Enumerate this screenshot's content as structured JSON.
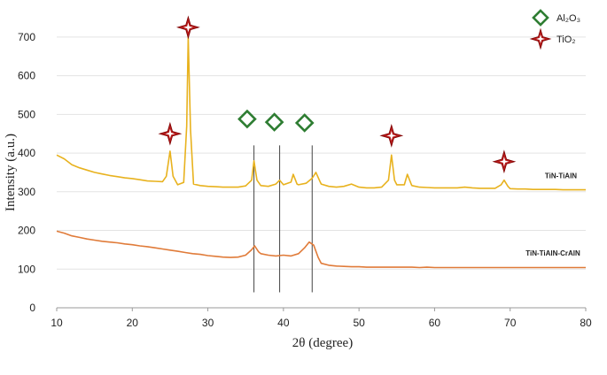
{
  "chart_data": {
    "type": "line",
    "title": "",
    "xlabel": "2θ (degree)",
    "ylabel": "Intensity (a.u.)",
    "xlim": [
      10,
      80
    ],
    "ylim": [
      0,
      750
    ],
    "x_ticks": [
      "10",
      "20",
      "30",
      "40",
      "50",
      "60",
      "70",
      "80"
    ],
    "y_ticks": [
      "0",
      "100",
      "200",
      "300",
      "400",
      "500",
      "600",
      "700"
    ],
    "grid": "horizontal",
    "legend": [
      {
        "name": "Al₂O₃",
        "marker": "diamond",
        "color": "#2e7d32"
      },
      {
        "name": "TiO₂",
        "marker": "star",
        "color": "#b71c1c"
      }
    ],
    "series": [
      {
        "name": "TiN-TiAlN",
        "color": "#e8b21e",
        "points": [
          [
            10,
            395
          ],
          [
            11,
            385
          ],
          [
            12,
            370
          ],
          [
            13,
            362
          ],
          [
            14,
            356
          ],
          [
            15,
            350
          ],
          [
            16,
            346
          ],
          [
            17,
            342
          ],
          [
            18,
            339
          ],
          [
            19,
            336
          ],
          [
            20,
            334
          ],
          [
            21,
            331
          ],
          [
            22,
            328
          ],
          [
            23,
            327
          ],
          [
            24,
            326
          ],
          [
            24.5,
            340
          ],
          [
            25.0,
            405
          ],
          [
            25.4,
            340
          ],
          [
            26,
            318
          ],
          [
            26.8,
            324
          ],
          [
            27.2,
            470
          ],
          [
            27.4,
            700
          ],
          [
            27.7,
            460
          ],
          [
            28.1,
            320
          ],
          [
            29,
            316
          ],
          [
            30,
            314
          ],
          [
            31,
            313
          ],
          [
            32,
            312
          ],
          [
            33,
            312
          ],
          [
            34,
            312
          ],
          [
            35,
            315
          ],
          [
            35.8,
            330
          ],
          [
            36.1,
            380
          ],
          [
            36.5,
            330
          ],
          [
            37,
            316
          ],
          [
            38,
            314
          ],
          [
            39,
            320
          ],
          [
            39.5,
            330
          ],
          [
            40,
            318
          ],
          [
            41,
            325
          ],
          [
            41.3,
            345
          ],
          [
            41.8,
            320
          ],
          [
            42,
            318
          ],
          [
            43,
            322
          ],
          [
            43.8,
            335
          ],
          [
            44.3,
            350
          ],
          [
            44.8,
            328
          ],
          [
            45,
            320
          ],
          [
            46,
            314
          ],
          [
            47,
            312
          ],
          [
            48,
            314
          ],
          [
            49,
            320
          ],
          [
            50,
            312
          ],
          [
            51,
            310
          ],
          [
            52,
            310
          ],
          [
            53,
            312
          ],
          [
            53.9,
            330
          ],
          [
            54.3,
            395
          ],
          [
            54.7,
            330
          ],
          [
            55,
            318
          ],
          [
            56,
            318
          ],
          [
            56.4,
            345
          ],
          [
            56.9,
            320
          ],
          [
            57,
            316
          ],
          [
            58,
            312
          ],
          [
            59,
            311
          ],
          [
            60,
            310
          ],
          [
            61,
            310
          ],
          [
            62,
            310
          ],
          [
            63,
            310
          ],
          [
            64,
            312
          ],
          [
            65,
            310
          ],
          [
            66,
            309
          ],
          [
            67,
            309
          ],
          [
            68,
            309
          ],
          [
            68.8,
            318
          ],
          [
            69.2,
            330
          ],
          [
            69.7,
            314
          ],
          [
            70,
            308
          ],
          [
            71,
            307
          ],
          [
            72,
            307
          ],
          [
            73,
            306
          ],
          [
            74,
            306
          ],
          [
            75,
            306
          ],
          [
            76,
            306
          ],
          [
            77,
            305
          ],
          [
            78,
            305
          ],
          [
            79,
            305
          ],
          [
            80,
            305
          ]
        ]
      },
      {
        "name": "TiN-TiAlN-CrAlN",
        "color": "#e07b39",
        "points": [
          [
            10,
            198
          ],
          [
            11,
            193
          ],
          [
            12,
            186
          ],
          [
            13,
            182
          ],
          [
            14,
            178
          ],
          [
            15,
            175
          ],
          [
            16,
            172
          ],
          [
            17,
            170
          ],
          [
            18,
            168
          ],
          [
            19,
            165
          ],
          [
            20,
            163
          ],
          [
            21,
            160
          ],
          [
            22,
            158
          ],
          [
            23,
            155
          ],
          [
            24,
            152
          ],
          [
            25,
            149
          ],
          [
            26,
            146
          ],
          [
            27,
            143
          ],
          [
            28,
            140
          ],
          [
            29,
            138
          ],
          [
            30,
            135
          ],
          [
            31,
            133
          ],
          [
            32,
            131
          ],
          [
            33,
            130
          ],
          [
            34,
            131
          ],
          [
            35,
            136
          ],
          [
            35.8,
            150
          ],
          [
            36.2,
            160
          ],
          [
            36.7,
            145
          ],
          [
            37,
            140
          ],
          [
            38,
            136
          ],
          [
            39,
            134
          ],
          [
            40,
            136
          ],
          [
            41,
            134
          ],
          [
            42,
            140
          ],
          [
            42.8,
            155
          ],
          [
            43.4,
            170
          ],
          [
            44,
            162
          ],
          [
            44.6,
            130
          ],
          [
            45,
            115
          ],
          [
            46,
            110
          ],
          [
            47,
            108
          ],
          [
            48,
            107
          ],
          [
            49,
            106
          ],
          [
            50,
            106
          ],
          [
            51,
            105
          ],
          [
            52,
            105
          ],
          [
            53,
            105
          ],
          [
            54,
            105
          ],
          [
            55,
            105
          ],
          [
            56,
            105
          ],
          [
            57,
            105
          ],
          [
            58,
            104
          ],
          [
            59,
            105
          ],
          [
            60,
            104
          ],
          [
            61,
            104
          ],
          [
            62,
            104
          ],
          [
            63,
            104
          ],
          [
            64,
            104
          ],
          [
            65,
            104
          ],
          [
            66,
            104
          ],
          [
            67,
            104
          ],
          [
            68,
            104
          ],
          [
            69,
            104
          ],
          [
            70,
            104
          ],
          [
            71,
            104
          ],
          [
            72,
            104
          ],
          [
            73,
            104
          ],
          [
            74,
            104
          ],
          [
            75,
            104
          ],
          [
            76,
            104
          ],
          [
            77,
            104
          ],
          [
            78,
            104
          ],
          [
            79,
            104
          ],
          [
            80,
            104
          ]
        ]
      }
    ],
    "annotations": [
      {
        "marker": "star",
        "phase": "TiO₂",
        "x": 25.0,
        "y": 450
      },
      {
        "marker": "star",
        "phase": "TiO₂",
        "x": 27.4,
        "y": 725
      },
      {
        "marker": "star",
        "phase": "TiO₂",
        "x": 54.3,
        "y": 445
      },
      {
        "marker": "star",
        "phase": "TiO₂",
        "x": 69.2,
        "y": 378
      },
      {
        "marker": "diamond",
        "phase": "Al₂O₃",
        "x": 35.2,
        "y": 488
      },
      {
        "marker": "diamond",
        "phase": "Al₂O₃",
        "x": 38.8,
        "y": 480
      },
      {
        "marker": "diamond",
        "phase": "Al₂O₃",
        "x": 42.8,
        "y": 478
      }
    ],
    "reference_lines": [
      {
        "x": 36.1,
        "y_from": 40,
        "y_to": 420
      },
      {
        "x": 39.5,
        "y_from": 40,
        "y_to": 420
      },
      {
        "x": 43.8,
        "y_from": 40,
        "y_to": 420
      }
    ]
  }
}
